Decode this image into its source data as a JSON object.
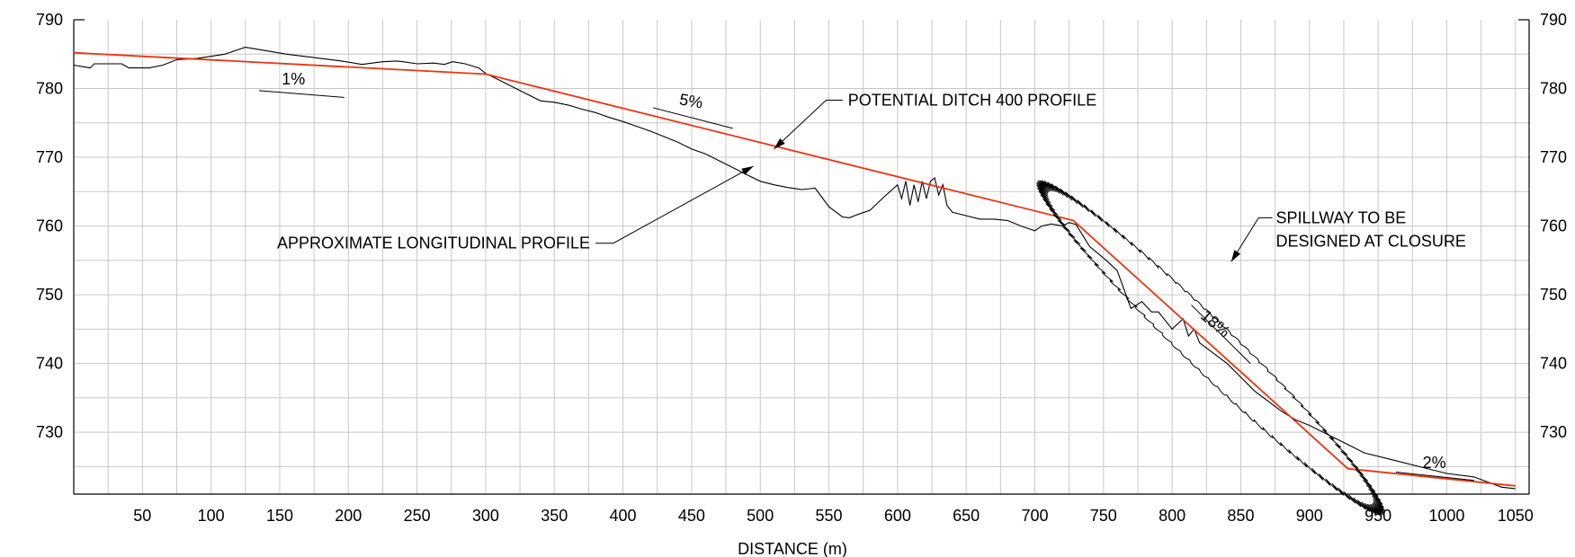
{
  "chart_data": {
    "type": "line",
    "title": "",
    "xlabel": "DISTANCE (m)",
    "ylabel": "",
    "xlim": [
      0,
      1060
    ],
    "ylim": [
      721,
      790
    ],
    "x_ticks": [
      50,
      100,
      150,
      200,
      250,
      300,
      350,
      400,
      450,
      500,
      550,
      600,
      650,
      700,
      750,
      800,
      850,
      900,
      950,
      1000,
      1050
    ],
    "y_ticks": [
      730,
      740,
      750,
      760,
      770,
      780,
      790
    ],
    "grid": true,
    "colors": {
      "ground": "#000000",
      "ditch": "#e8360f"
    },
    "series": [
      {
        "key": "ground",
        "x": [
          0,
          12,
          15,
          35,
          40,
          55,
          65,
          75,
          90,
          110,
          125,
          140,
          155,
          175,
          195,
          210,
          225,
          235,
          240,
          250,
          262,
          270,
          276,
          285,
          295,
          300,
          310,
          320,
          330,
          340,
          350,
          360,
          370,
          380,
          390,
          400,
          410,
          420,
          430,
          440,
          450,
          460,
          470,
          480,
          490,
          500,
          510,
          520,
          530,
          540,
          550,
          560,
          565,
          570,
          580,
          590,
          600,
          603,
          606,
          609,
          612,
          615,
          618,
          621,
          624,
          627,
          630,
          633,
          636,
          640,
          650,
          660,
          670,
          680,
          690,
          700,
          705,
          712,
          720,
          725,
          730,
          740,
          752,
          760,
          770,
          778,
          785,
          790,
          800,
          808,
          812,
          816,
          820,
          830,
          840,
          850,
          860,
          870,
          880,
          890,
          900,
          910,
          920,
          930,
          940,
          960,
          980,
          1000,
          1020,
          1040,
          1050
        ],
        "y": [
          783.4,
          783.0,
          783.6,
          783.6,
          783.0,
          783.0,
          783.4,
          784.2,
          784.4,
          785.0,
          786.0,
          785.5,
          785.0,
          784.5,
          784.0,
          783.5,
          783.9,
          784.0,
          783.9,
          783.6,
          783.7,
          783.5,
          783.9,
          783.6,
          783.0,
          782.2,
          781.2,
          780.2,
          779.2,
          778.2,
          778.0,
          777.6,
          777.0,
          776.5,
          775.8,
          775.2,
          774.5,
          773.8,
          773.0,
          772.2,
          771.2,
          770.5,
          769.5,
          768.5,
          767.5,
          766.5,
          766.0,
          765.6,
          765.3,
          765.5,
          762.8,
          761.3,
          761.2,
          761.6,
          762.3,
          764.2,
          766.0,
          764.0,
          766.5,
          763.0,
          766.0,
          763.5,
          766.5,
          764.0,
          766.5,
          767.0,
          764.5,
          766.0,
          763.0,
          762.0,
          761.5,
          761.0,
          761.0,
          760.8,
          760.0,
          759.3,
          760.0,
          760.3,
          760.0,
          760.5,
          760.2,
          757.0,
          755.0,
          753.5,
          748.0,
          749.0,
          747.5,
          747.5,
          745.0,
          746.5,
          744.0,
          745.0,
          743.0,
          741.5,
          740.0,
          738.0,
          736.0,
          734.5,
          733.0,
          731.8,
          731.0,
          730.0,
          729.0,
          728.0,
          727.0,
          726.0,
          725.0,
          724.0,
          723.5,
          722.0,
          721.8
        ]
      },
      {
        "key": "ditch",
        "x": [
          0,
          300,
          728,
          928,
          1050
        ],
        "y": [
          785.2,
          782.1,
          760.8,
          724.7,
          722.2
        ]
      }
    ],
    "annotations": {
      "ditch_label": "POTENTIAL DITCH 400 PROFILE",
      "ground_label": "APPROXIMATE LONGITUDINAL PROFILE",
      "spillway_label_line1": "SPILLWAY TO BE",
      "spillway_label_line2": "DESIGNED AT CLOSURE",
      "slope_1": "1%",
      "slope_2": "5%",
      "slope_3": "18%",
      "slope_4": "2%"
    }
  }
}
